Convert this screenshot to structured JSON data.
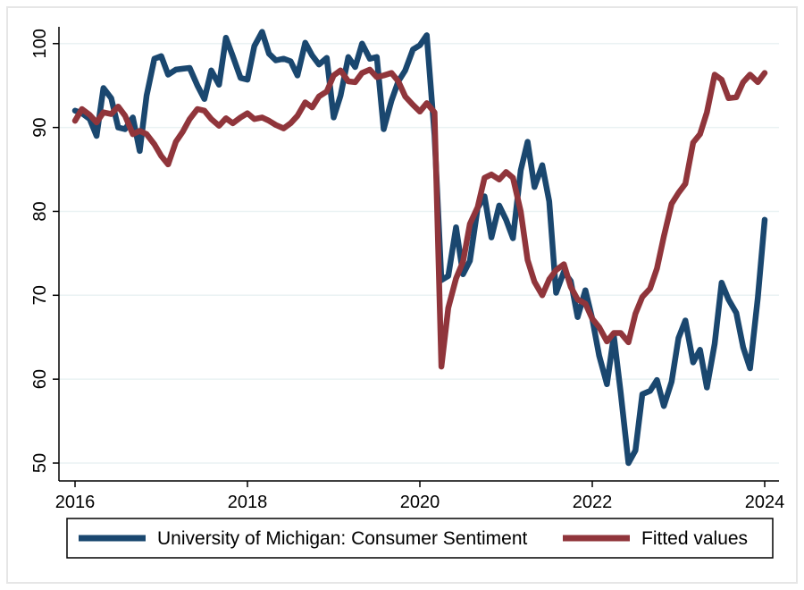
{
  "chart_data": {
    "type": "line",
    "title": "",
    "xlabel": "",
    "ylabel": "",
    "xlim": [
      2016,
      2024
    ],
    "ylim": [
      50,
      102
    ],
    "xticks": [
      {
        "value": 2016,
        "label": "2016"
      },
      {
        "value": 2018,
        "label": "2018"
      },
      {
        "value": 2020,
        "label": "2020"
      },
      {
        "value": 2022,
        "label": "2022"
      },
      {
        "value": 2024,
        "label": "2024"
      }
    ],
    "yticks": [
      {
        "value": 50,
        "label": "50"
      },
      {
        "value": 60,
        "label": "60"
      },
      {
        "value": 70,
        "label": "70"
      },
      {
        "value": 80,
        "label": "80"
      },
      {
        "value": 90,
        "label": "90"
      },
      {
        "value": 100,
        "label": "100"
      }
    ],
    "grid": true,
    "legend_position": "bottom",
    "series": [
      {
        "name": "University of Michigan: Consumer Sentiment",
        "color": "#1a476f",
        "points": [
          [
            2016.0,
            92.0
          ],
          [
            2016.08,
            91.7
          ],
          [
            2016.17,
            91.0
          ],
          [
            2016.25,
            89.0
          ],
          [
            2016.33,
            94.7
          ],
          [
            2016.42,
            93.5
          ],
          [
            2016.5,
            90.0
          ],
          [
            2016.58,
            89.8
          ],
          [
            2016.67,
            91.2
          ],
          [
            2016.75,
            87.2
          ],
          [
            2016.83,
            93.8
          ],
          [
            2016.92,
            98.2
          ],
          [
            2017.0,
            98.5
          ],
          [
            2017.08,
            96.3
          ],
          [
            2017.17,
            96.9
          ],
          [
            2017.25,
            97.0
          ],
          [
            2017.33,
            97.1
          ],
          [
            2017.42,
            95.0
          ],
          [
            2017.5,
            93.4
          ],
          [
            2017.58,
            96.8
          ],
          [
            2017.67,
            95.1
          ],
          [
            2017.75,
            100.7
          ],
          [
            2017.83,
            98.5
          ],
          [
            2017.92,
            95.9
          ],
          [
            2018.0,
            95.7
          ],
          [
            2018.08,
            99.7
          ],
          [
            2018.17,
            101.4
          ],
          [
            2018.25,
            98.8
          ],
          [
            2018.33,
            98.0
          ],
          [
            2018.42,
            98.2
          ],
          [
            2018.5,
            97.9
          ],
          [
            2018.58,
            96.2
          ],
          [
            2018.67,
            100.1
          ],
          [
            2018.75,
            98.6
          ],
          [
            2018.83,
            97.5
          ],
          [
            2018.92,
            98.3
          ],
          [
            2019.0,
            91.2
          ],
          [
            2019.08,
            93.8
          ],
          [
            2019.17,
            98.4
          ],
          [
            2019.25,
            97.2
          ],
          [
            2019.33,
            100.0
          ],
          [
            2019.42,
            98.2
          ],
          [
            2019.5,
            98.4
          ],
          [
            2019.58,
            89.8
          ],
          [
            2019.67,
            93.2
          ],
          [
            2019.75,
            95.5
          ],
          [
            2019.83,
            96.8
          ],
          [
            2019.92,
            99.3
          ],
          [
            2020.0,
            99.8
          ],
          [
            2020.08,
            101.0
          ],
          [
            2020.17,
            89.1
          ],
          [
            2020.25,
            71.8
          ],
          [
            2020.33,
            72.3
          ],
          [
            2020.42,
            78.1
          ],
          [
            2020.5,
            72.5
          ],
          [
            2020.58,
            74.1
          ],
          [
            2020.67,
            80.4
          ],
          [
            2020.75,
            81.8
          ],
          [
            2020.83,
            76.9
          ],
          [
            2020.92,
            80.7
          ],
          [
            2021.0,
            79.0
          ],
          [
            2021.08,
            76.8
          ],
          [
            2021.17,
            84.9
          ],
          [
            2021.25,
            88.3
          ],
          [
            2021.33,
            82.9
          ],
          [
            2021.42,
            85.5
          ],
          [
            2021.5,
            81.2
          ],
          [
            2021.58,
            70.3
          ],
          [
            2021.67,
            72.8
          ],
          [
            2021.75,
            71.7
          ],
          [
            2021.83,
            67.4
          ],
          [
            2021.92,
            70.6
          ],
          [
            2022.0,
            67.2
          ],
          [
            2022.08,
            62.8
          ],
          [
            2022.17,
            59.4
          ],
          [
            2022.25,
            65.2
          ],
          [
            2022.33,
            58.4
          ],
          [
            2022.42,
            50.0
          ],
          [
            2022.5,
            51.5
          ],
          [
            2022.58,
            58.2
          ],
          [
            2022.67,
            58.6
          ],
          [
            2022.75,
            59.9
          ],
          [
            2022.83,
            56.8
          ],
          [
            2022.92,
            59.7
          ],
          [
            2023.0,
            64.9
          ],
          [
            2023.08,
            67.0
          ],
          [
            2023.17,
            62.0
          ],
          [
            2023.25,
            63.5
          ],
          [
            2023.33,
            59.0
          ],
          [
            2023.42,
            64.2
          ],
          [
            2023.5,
            71.5
          ],
          [
            2023.58,
            69.5
          ],
          [
            2023.67,
            67.9
          ],
          [
            2023.75,
            63.8
          ],
          [
            2023.83,
            61.3
          ],
          [
            2023.92,
            69.7
          ],
          [
            2024.0,
            79.0
          ]
        ]
      },
      {
        "name": "Fitted values",
        "color": "#90353b",
        "points": [
          [
            2016.0,
            90.8
          ],
          [
            2016.08,
            92.2
          ],
          [
            2016.17,
            91.5
          ],
          [
            2016.25,
            90.6
          ],
          [
            2016.33,
            91.8
          ],
          [
            2016.42,
            91.6
          ],
          [
            2016.5,
            92.5
          ],
          [
            2016.58,
            91.4
          ],
          [
            2016.67,
            89.2
          ],
          [
            2016.75,
            89.6
          ],
          [
            2016.83,
            89.2
          ],
          [
            2016.92,
            88.0
          ],
          [
            2017.0,
            86.6
          ],
          [
            2017.08,
            85.6
          ],
          [
            2017.17,
            88.3
          ],
          [
            2017.25,
            89.5
          ],
          [
            2017.33,
            91.0
          ],
          [
            2017.42,
            92.2
          ],
          [
            2017.5,
            92.0
          ],
          [
            2017.58,
            91.0
          ],
          [
            2017.67,
            90.2
          ],
          [
            2017.75,
            91.1
          ],
          [
            2017.83,
            90.5
          ],
          [
            2017.92,
            91.2
          ],
          [
            2018.0,
            91.7
          ],
          [
            2018.08,
            91.0
          ],
          [
            2018.17,
            91.2
          ],
          [
            2018.25,
            90.8
          ],
          [
            2018.33,
            90.3
          ],
          [
            2018.42,
            89.9
          ],
          [
            2018.5,
            90.5
          ],
          [
            2018.58,
            91.4
          ],
          [
            2018.67,
            93.0
          ],
          [
            2018.75,
            92.4
          ],
          [
            2018.83,
            93.7
          ],
          [
            2018.92,
            94.3
          ],
          [
            2019.0,
            96.2
          ],
          [
            2019.08,
            96.8
          ],
          [
            2019.17,
            95.5
          ],
          [
            2019.25,
            95.4
          ],
          [
            2019.33,
            96.5
          ],
          [
            2019.42,
            96.9
          ],
          [
            2019.5,
            96.0
          ],
          [
            2019.58,
            96.2
          ],
          [
            2019.67,
            96.5
          ],
          [
            2019.75,
            95.5
          ],
          [
            2019.83,
            93.7
          ],
          [
            2019.92,
            92.7
          ],
          [
            2020.0,
            91.9
          ],
          [
            2020.08,
            92.9
          ],
          [
            2020.17,
            91.8
          ],
          [
            2020.25,
            61.5
          ],
          [
            2020.33,
            68.5
          ],
          [
            2020.42,
            72.0
          ],
          [
            2020.5,
            74.0
          ],
          [
            2020.58,
            78.5
          ],
          [
            2020.67,
            80.5
          ],
          [
            2020.75,
            84.0
          ],
          [
            2020.83,
            84.4
          ],
          [
            2020.92,
            83.8
          ],
          [
            2021.0,
            84.7
          ],
          [
            2021.08,
            84.0
          ],
          [
            2021.17,
            80.0
          ],
          [
            2021.25,
            74.2
          ],
          [
            2021.33,
            71.6
          ],
          [
            2021.42,
            70.0
          ],
          [
            2021.5,
            71.9
          ],
          [
            2021.58,
            73.0
          ],
          [
            2021.67,
            73.7
          ],
          [
            2021.75,
            71.0
          ],
          [
            2021.83,
            69.5
          ],
          [
            2021.92,
            69.0
          ],
          [
            2022.0,
            67.2
          ],
          [
            2022.08,
            66.2
          ],
          [
            2022.17,
            64.5
          ],
          [
            2022.25,
            65.5
          ],
          [
            2022.33,
            65.5
          ],
          [
            2022.42,
            64.4
          ],
          [
            2022.5,
            67.8
          ],
          [
            2022.58,
            69.8
          ],
          [
            2022.67,
            70.8
          ],
          [
            2022.75,
            73.2
          ],
          [
            2022.83,
            77.0
          ],
          [
            2022.92,
            80.9
          ],
          [
            2023.0,
            82.2
          ],
          [
            2023.08,
            83.3
          ],
          [
            2023.17,
            88.2
          ],
          [
            2023.25,
            89.2
          ],
          [
            2023.33,
            91.8
          ],
          [
            2023.42,
            96.3
          ],
          [
            2023.5,
            95.7
          ],
          [
            2023.58,
            93.5
          ],
          [
            2023.67,
            93.6
          ],
          [
            2023.75,
            95.4
          ],
          [
            2023.83,
            96.3
          ],
          [
            2023.92,
            95.4
          ],
          [
            2024.0,
            96.5
          ]
        ]
      }
    ]
  },
  "legend": {
    "items": [
      {
        "label": "University of Michigan: Consumer Sentiment",
        "color": "#1a476f"
      },
      {
        "label": "Fitted values",
        "color": "#90353b"
      }
    ]
  }
}
